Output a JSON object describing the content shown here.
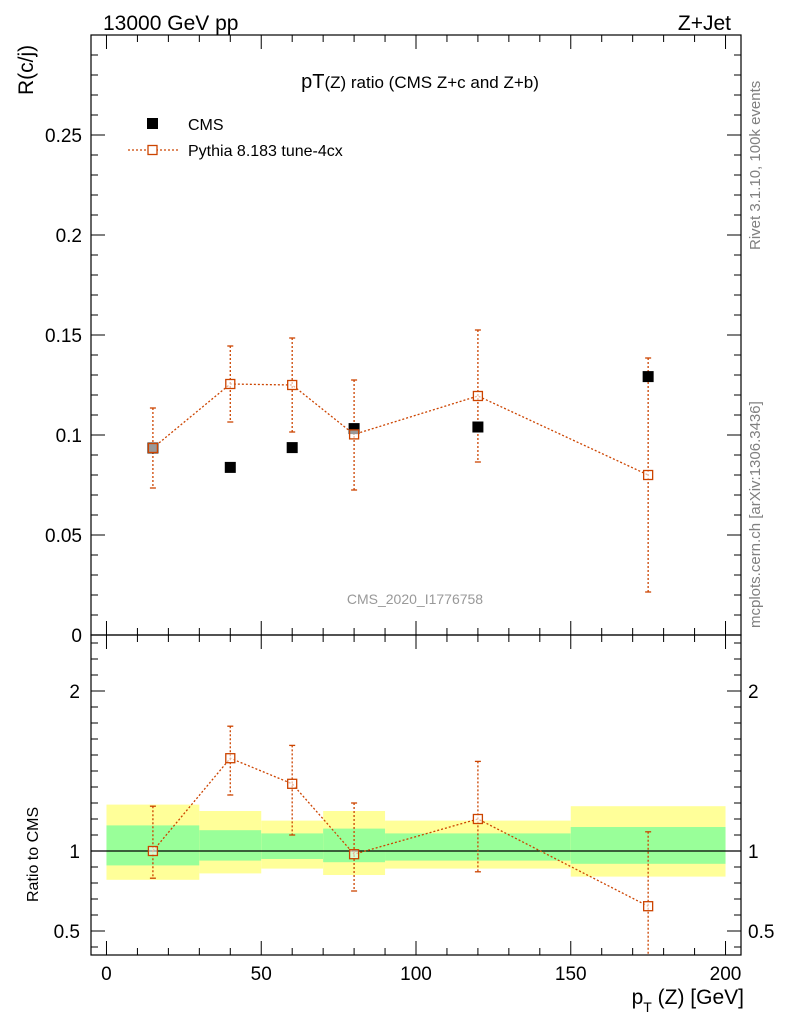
{
  "header": {
    "left_title": "13000 GeV pp",
    "right_title": "Z+Jet"
  },
  "side": {
    "rivet": "Rivet 3.1.10,  100k events",
    "mcplots": "mcplots.cern.ch [arXiv:1306.3436]"
  },
  "colors": {
    "mc": "#cc4400",
    "band_inner": "#99ff99",
    "band_outer": "#ffff99",
    "data_marker": "#000000",
    "watermark": "#999999",
    "side_text": "#808080"
  },
  "chart_data": {
    "type": "scatter",
    "title_prefix": "pT",
    "title_suffix": "(Z)",
    "title_rest": " ratio (CMS  Z+c and Z+b)",
    "ylabel": "R(c/j)",
    "ratio_ylabel": "Ratio to CMS",
    "xlabel_p": "p",
    "xlabel_sub": "T",
    "xlabel_rest": " (Z) [GeV]",
    "analysis_id": "CMS_2020_I1776758",
    "xlim": [
      -5,
      205
    ],
    "ylim": [
      0,
      0.3
    ],
    "ratio_ylim": [
      0.35,
      2.35
    ],
    "x_ticks": [
      "0",
      "50",
      "100",
      "150",
      "200"
    ],
    "y_ticks": [
      "0",
      "0.05",
      "0.1",
      "0.15",
      "0.2",
      "0.25"
    ],
    "ratio_ticks": [
      "0.5",
      "1",
      "2"
    ],
    "legend": {
      "data": "CMS",
      "mc": "Pythia 8.183 tune-4cx"
    },
    "bins": [
      [
        0,
        30
      ],
      [
        30,
        50
      ],
      [
        50,
        70
      ],
      [
        70,
        90
      ],
      [
        90,
        150
      ],
      [
        150,
        200
      ]
    ],
    "data": {
      "name": "CMS",
      "x": [
        15,
        40,
        60,
        80,
        120,
        175
      ],
      "y": [
        0.0935,
        0.0838,
        0.0937,
        0.1032,
        0.104,
        0.1292
      ]
    },
    "mc": {
      "name": "Pythia 8.183 tune-4cx",
      "x": [
        15,
        40,
        60,
        80,
        120,
        175
      ],
      "y": [
        0.0935,
        0.1255,
        0.125,
        0.1003,
        0.1195,
        0.08
      ],
      "ylo": [
        0.0735,
        0.1065,
        0.1015,
        0.0725,
        0.0865,
        0.0215
      ],
      "yhi": [
        0.1135,
        0.1445,
        0.1485,
        0.1275,
        0.1525,
        0.1385
      ]
    },
    "ratio": {
      "x": [
        15,
        40,
        60,
        80,
        120,
        175
      ],
      "y": [
        1.0,
        1.58,
        1.42,
        0.98,
        1.2,
        0.655
      ],
      "ylo": [
        0.83,
        1.35,
        1.1,
        0.75,
        0.87,
        0.35
      ],
      "yhi": [
        1.28,
        1.78,
        1.66,
        1.3,
        1.56,
        1.12
      ],
      "band_inner": [
        [
          0.91,
          1.16
        ],
        [
          0.94,
          1.13
        ],
        [
          0.95,
          1.11
        ],
        [
          0.93,
          1.14
        ],
        [
          0.94,
          1.11
        ],
        [
          0.92,
          1.15
        ]
      ],
      "band_outer": [
        [
          0.82,
          1.29
        ],
        [
          0.86,
          1.25
        ],
        [
          0.89,
          1.19
        ],
        [
          0.85,
          1.25
        ],
        [
          0.89,
          1.19
        ],
        [
          0.84,
          1.28
        ]
      ]
    }
  }
}
